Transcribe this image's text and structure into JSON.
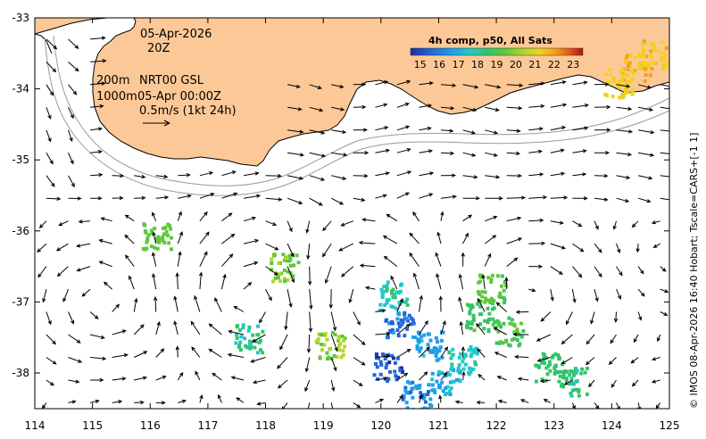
{
  "map": {
    "date": "05-Apr-2026",
    "time": "20Z",
    "depth_shallow": "200m",
    "depth_deep": "1000m",
    "product": "NRT00 GSL",
    "product_time": "05-Apr 00:00Z",
    "scale_text": "0.5m/s (1kt 24h)",
    "credit": "© IMOS 08-Apr-2026 16:40 Hobart; Tscale=CARS+[-1 1]",
    "colors": {
      "land": "#fdc897",
      "ocean": "#ffffff",
      "arrow": "#000000",
      "isobath": "#999999"
    }
  },
  "axes": {
    "lon_ticks": [
      "114",
      "115",
      "116",
      "117",
      "118",
      "119",
      "120",
      "121",
      "122",
      "123",
      "124",
      "125"
    ],
    "lat_ticks": [
      "-33",
      "-34",
      "-35",
      "-36",
      "-37",
      "-38"
    ],
    "lon_range": [
      114,
      125
    ],
    "lat_range": [
      -38.5,
      -33
    ]
  },
  "colorbar": {
    "title": "4h comp, p50, All Sats",
    "ticks": [
      "15",
      "16",
      "17",
      "18",
      "19",
      "20",
      "21",
      "22",
      "23"
    ],
    "range": [
      14.5,
      23.5
    ],
    "colors": [
      "#1a2fa0",
      "#2466d8",
      "#1f9ee8",
      "#22c8c8",
      "#33c46a",
      "#5dc83a",
      "#b4d62a",
      "#f0d21e",
      "#f5a01a",
      "#e0501a",
      "#a01810"
    ]
  },
  "sst_patches": [
    {
      "lon": 120.3,
      "lat": -37.3,
      "temp": 15.6
    },
    {
      "lon": 120.1,
      "lat": -37.9,
      "temp": 15.2
    },
    {
      "lon": 120.6,
      "lat": -38.3,
      "temp": 16.0
    },
    {
      "lon": 120.2,
      "lat": -36.9,
      "temp": 17.4
    },
    {
      "lon": 120.8,
      "lat": -37.6,
      "temp": 16.4
    },
    {
      "lon": 121.4,
      "lat": -37.8,
      "temp": 17.3
    },
    {
      "lon": 121.1,
      "lat": -38.1,
      "temp": 16.8
    },
    {
      "lon": 121.9,
      "lat": -36.8,
      "temp": 18.9
    },
    {
      "lon": 122.2,
      "lat": -37.4,
      "temp": 18.6
    },
    {
      "lon": 121.7,
      "lat": -37.2,
      "temp": 18.2
    },
    {
      "lon": 122.9,
      "lat": -37.9,
      "temp": 18.1
    },
    {
      "lon": 123.3,
      "lat": -38.1,
      "temp": 17.9
    },
    {
      "lon": 117.7,
      "lat": -37.5,
      "temp": 17.8
    },
    {
      "lon": 119.1,
      "lat": -37.6,
      "temp": 19.4
    },
    {
      "lon": 118.3,
      "lat": -36.5,
      "temp": 19.2
    },
    {
      "lon": 124.4,
      "lat": -33.7,
      "temp": 21.3
    },
    {
      "lon": 124.7,
      "lat": -33.5,
      "temp": 21.0
    },
    {
      "lon": 124.1,
      "lat": -33.9,
      "temp": 20.8
    },
    {
      "lon": 116.1,
      "lat": -36.05,
      "temp": 19.0
    }
  ]
}
